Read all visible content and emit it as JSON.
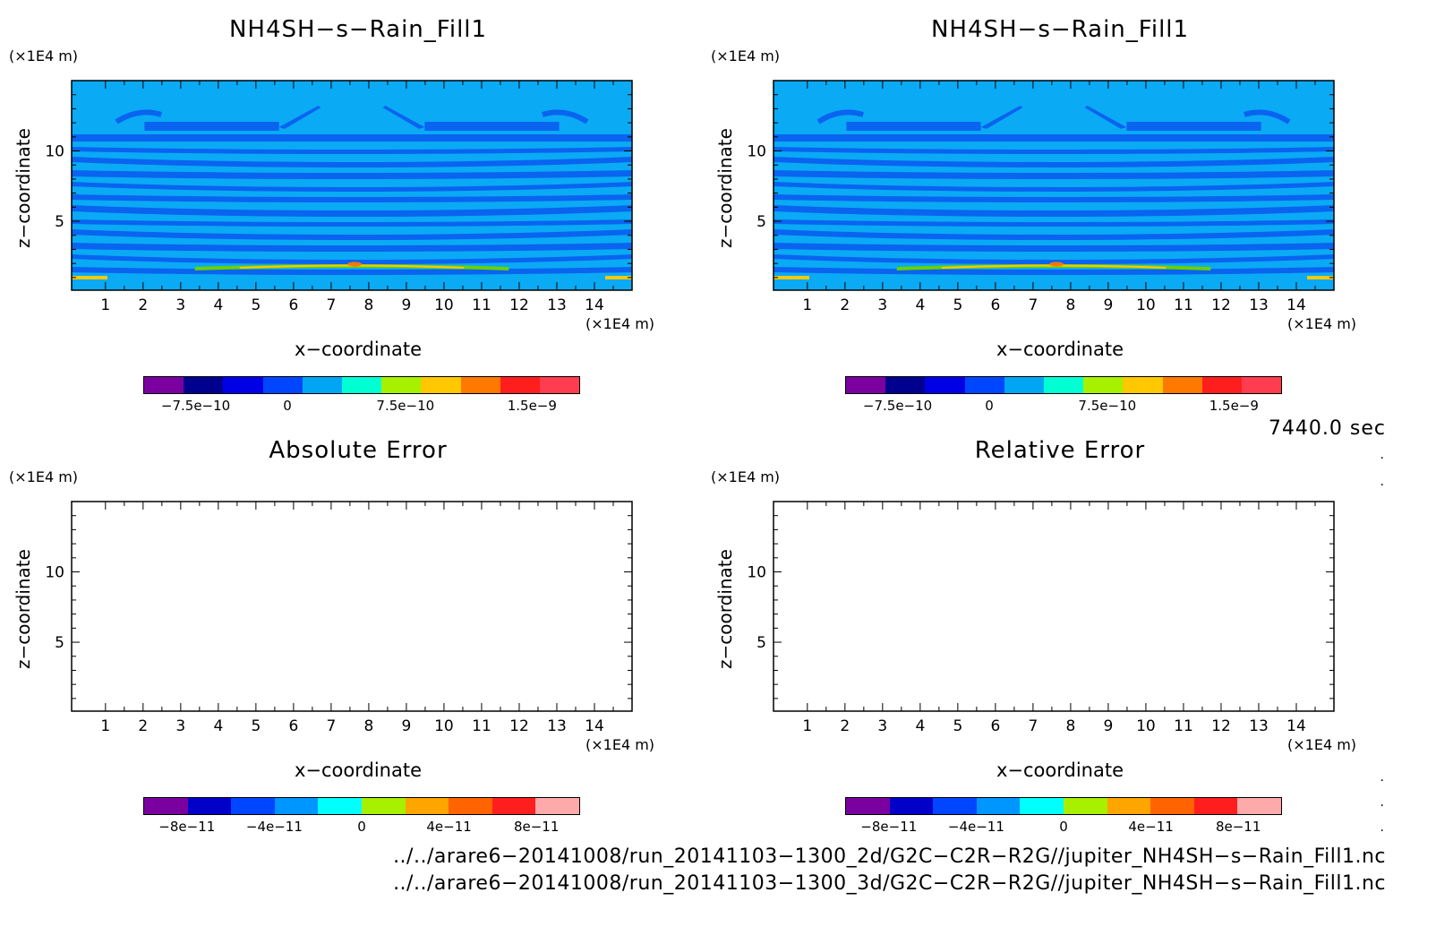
{
  "chart_data": [
    {
      "type": "heatmap",
      "title": "NH4SH−s−Rain_Fill1",
      "xlabel": "x−coordinate",
      "ylabel": "z−coordinate",
      "x_unit": "(×1E4 m)",
      "z_unit": "(×1E4 m)",
      "xlim": [
        0.1,
        15
      ],
      "ylim": [
        0.1,
        15
      ],
      "x_ticks": [
        "1",
        "2",
        "3",
        "4",
        "5",
        "6",
        "7",
        "8",
        "9",
        "10",
        "11",
        "12",
        "13",
        "14"
      ],
      "y_ticks": [
        "5",
        "10"
      ],
      "field": "banded-bottom-layer",
      "colorbar": {
        "colors": [
          "#7b00a0",
          "#00008e",
          "#0000e6",
          "#0046ff",
          "#00a6f4",
          "#00ffd2",
          "#a6f000",
          "#ffc800",
          "#ff7800",
          "#ff1e1e",
          "#ff3c50"
        ],
        "labels": [
          "−7.5e−10",
          "0",
          "7.5e−10",
          "1.5e−9"
        ]
      }
    },
    {
      "type": "heatmap",
      "title": "NH4SH−s−Rain_Fill1",
      "xlabel": "x−coordinate",
      "ylabel": "z−coordinate",
      "x_unit": "(×1E4 m)",
      "z_unit": "(×1E4 m)",
      "xlim": [
        0.1,
        15
      ],
      "ylim": [
        0.1,
        15
      ],
      "x_ticks": [
        "1",
        "2",
        "3",
        "4",
        "5",
        "6",
        "7",
        "8",
        "9",
        "10",
        "11",
        "12",
        "13",
        "14"
      ],
      "y_ticks": [
        "5",
        "10"
      ],
      "field": "banded-bottom-layer",
      "colorbar": {
        "colors": [
          "#7b00a0",
          "#00008e",
          "#0000e6",
          "#0046ff",
          "#00a6f4",
          "#00ffd2",
          "#a6f000",
          "#ffc800",
          "#ff7800",
          "#ff1e1e",
          "#ff3c50"
        ],
        "labels": [
          "−7.5e−10",
          "0",
          "7.5e−10",
          "1.5e−9"
        ]
      }
    },
    {
      "type": "heatmap",
      "title": "Absolute Error",
      "xlabel": "x−coordinate",
      "ylabel": "z−coordinate",
      "x_unit": "(×1E4 m)",
      "z_unit": "(×1E4 m)",
      "xlim": [
        0.1,
        15
      ],
      "ylim": [
        0.1,
        15
      ],
      "x_ticks": [
        "1",
        "2",
        "3",
        "4",
        "5",
        "6",
        "7",
        "8",
        "9",
        "10",
        "11",
        "12",
        "13",
        "14"
      ],
      "y_ticks": [
        "5",
        "10"
      ],
      "field": "empty",
      "colorbar": {
        "colors": [
          "#7b00a0",
          "#0000c8",
          "#0046ff",
          "#0096ff",
          "#00ffff",
          "#a6f000",
          "#ffa500",
          "#ff6400",
          "#ff1e1e",
          "#ffaaaa"
        ],
        "labels": [
          "−8e−11",
          "−4e−11",
          "0",
          "4e−11",
          "8e−11"
        ]
      }
    },
    {
      "type": "heatmap",
      "title": "Relative Error",
      "xlabel": "x−coordinate",
      "ylabel": "z−coordinate",
      "x_unit": "(×1E4 m)",
      "z_unit": "(×1E4 m)",
      "xlim": [
        0.1,
        15
      ],
      "ylim": [
        0.1,
        15
      ],
      "x_ticks": [
        "1",
        "2",
        "3",
        "4",
        "5",
        "6",
        "7",
        "8",
        "9",
        "10",
        "11",
        "12",
        "13",
        "14"
      ],
      "y_ticks": [
        "5",
        "10"
      ],
      "field": "empty",
      "colorbar": {
        "colors": [
          "#7b00a0",
          "#0000c8",
          "#0046ff",
          "#0096ff",
          "#00ffff",
          "#a6f000",
          "#ffa500",
          "#ff6400",
          "#ff1e1e",
          "#ffaaaa"
        ],
        "labels": [
          "−8e−11",
          "−4e−11",
          "0",
          "4e−11",
          "8e−11"
        ]
      }
    }
  ],
  "time_label": "7440.0 sec",
  "paths": [
    "../../arare6−20141008/run_20141103−1300_2d/G2C−C2R−R2G//jupiter_NH4SH−s−Rain_Fill1.nc",
    "../../arare6−20141008/run_20141103−1300_3d/G2C−C2R−R2G//jupiter_NH4SH−s−Rain_Fill1.nc"
  ]
}
